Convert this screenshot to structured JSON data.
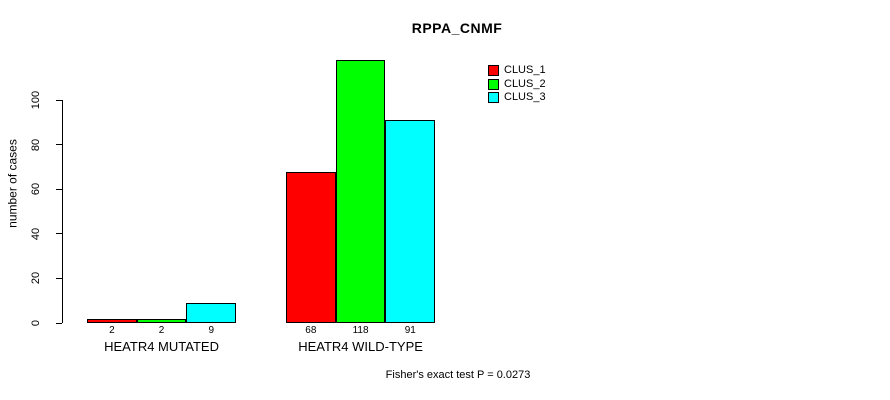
{
  "title": "RPPA_CNMF",
  "footnote": "Fisher's exact test P = 0.0273",
  "colors": {
    "clus_1": "#ff0000",
    "clus_2": "#00ff00",
    "clus_3": "#00ffff",
    "axis": "#000000",
    "background": "#ffffff"
  },
  "chart_data": {
    "type": "bar",
    "title": "RPPA_CNMF",
    "xlabel": "",
    "ylabel": "number of cases",
    "categories": [
      "HEATR4 MUTATED",
      "HEATR4 WILD-TYPE"
    ],
    "series": [
      {
        "name": "CLUS_1",
        "color": "#ff0000",
        "values": [
          2,
          68
        ]
      },
      {
        "name": "CLUS_2",
        "color": "#00ff00",
        "values": [
          2,
          118
        ]
      },
      {
        "name": "CLUS_3",
        "color": "#00ffff",
        "values": [
          9,
          91
        ]
      }
    ],
    "bar_value_labels": [
      [
        2,
        2,
        9
      ],
      [
        68,
        118,
        91
      ]
    ],
    "yticks": [
      0,
      20,
      40,
      60,
      80,
      100
    ],
    "ylim": [
      0,
      120
    ],
    "grid": false,
    "legend_position": "top-right",
    "annotation": "Fisher's exact test P = 0.0273"
  }
}
